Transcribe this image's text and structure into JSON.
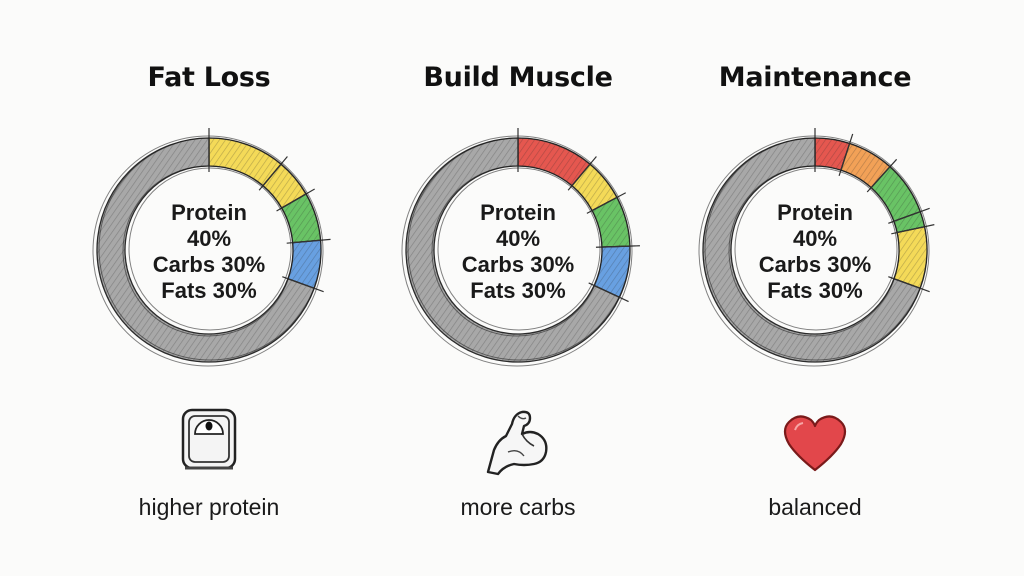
{
  "panels": [
    {
      "title": "Fat Loss",
      "ring_lines": [
        "Protein",
        "40%",
        "Carbs 30%",
        "Fats 30%"
      ],
      "icon": "scale-icon",
      "caption": "higher protein"
    },
    {
      "title": "Build Muscle",
      "ring_lines": [
        "Protein",
        "40%",
        "Carbs 30%",
        "Fats 30%"
      ],
      "icon": "flexed-arm-icon",
      "caption": "more carbs"
    },
    {
      "title": "Maintenance",
      "ring_lines": [
        "Protein",
        "40%",
        "Carbs 30%",
        "Fats 30%"
      ],
      "icon": "heart-icon",
      "caption": "balanced"
    }
  ],
  "colors": {
    "gray": "#8c8c8c",
    "yellow": "#f2d33b",
    "green": "#4fb84a",
    "blue": "#4d8fdc",
    "red": "#e03a30",
    "orange": "#f0913a",
    "heart": "#e2474b"
  }
}
